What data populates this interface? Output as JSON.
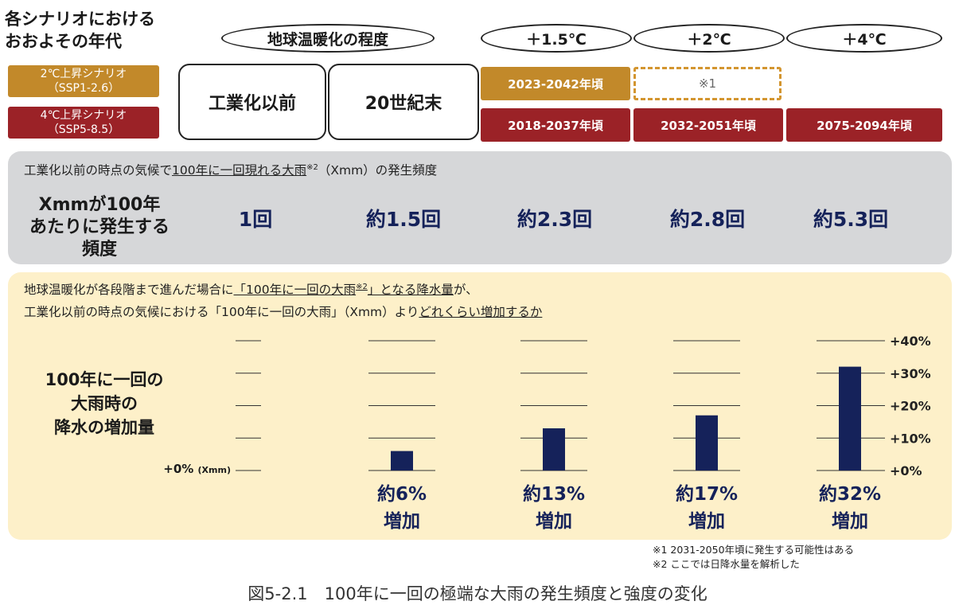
{
  "header": {
    "era_title_line1": "各シナリオにおける",
    "era_title_line2": "おおよその年代",
    "warming_title": "地球温暖化の程度",
    "scenarios": [
      {
        "line1": "2℃上昇シナリオ",
        "line2": "（SSP1-2.6）",
        "color": "#c2892a"
      },
      {
        "line1": "4℃上昇シナリオ",
        "line2": "（SSP5-8.5）",
        "color": "#9b2227"
      }
    ],
    "levels": [
      "＋1.5℃",
      "＋2℃",
      "＋4℃"
    ],
    "eras": [
      "工業化以前",
      "20世紀末"
    ],
    "years_ssp126": [
      "2023-2042年頃",
      "※1"
    ],
    "years_ssp585": [
      "2018-2037年頃",
      "2032-2051年頃",
      "2075-2094年頃"
    ]
  },
  "frequency": {
    "caption_prefix": "工業化以前の時点の気候で",
    "caption_underlined": "100年に一回現れる大雨",
    "caption_sup": "※2",
    "caption_suffix": "（Xmm）の発生頻度",
    "row_label_line1": "Xmmが100年",
    "row_label_line2": "あたりに発生する",
    "row_label_line3": "頻度",
    "values": [
      "1回",
      "約1.5回",
      "約2.3回",
      "約2.8回",
      "約5.3回"
    ]
  },
  "increase": {
    "caption1_prefix": "地球温暖化が各段階まで進んだ場合に",
    "caption1_underlined": "「100年に一回の大雨",
    "caption1_sup": "※2",
    "caption1_underlined2": "」となる降水量",
    "caption1_suffix": "が、",
    "caption2_prefix": "工業化以前の時点の気候における「100年に一回の大雨」（Xmm）より",
    "caption2_underlined": "どれくらい増加するか",
    "row_label_line1": "100年に一回の",
    "row_label_line2": "大雨時の",
    "row_label_line3": "降水の増加量",
    "zero_label": "+0%",
    "zero_unit": "(Xmm)"
  },
  "chart_data": {
    "type": "bar",
    "categories": [
      "20世紀末",
      "+1.5℃",
      "+2℃",
      "+4℃"
    ],
    "values": [
      6,
      13,
      17,
      32
    ],
    "value_labels": [
      "約6%",
      "約13%",
      "約17%",
      "約32%"
    ],
    "value_label_suffix": "増加",
    "ylim": [
      0,
      40
    ],
    "y_ticks": [
      "+0%",
      "+10%",
      "+20%",
      "+30%",
      "+40%"
    ],
    "bar_color": "#15225a"
  },
  "notes": {
    "note1": "※1 2031-2050年頃に発生する可能性はある",
    "note2": "※2 ここでは日降水量を解析した"
  },
  "figure_title": "図5-2.1　100年に一回の極端な大雨の発生頻度と強度の変化"
}
